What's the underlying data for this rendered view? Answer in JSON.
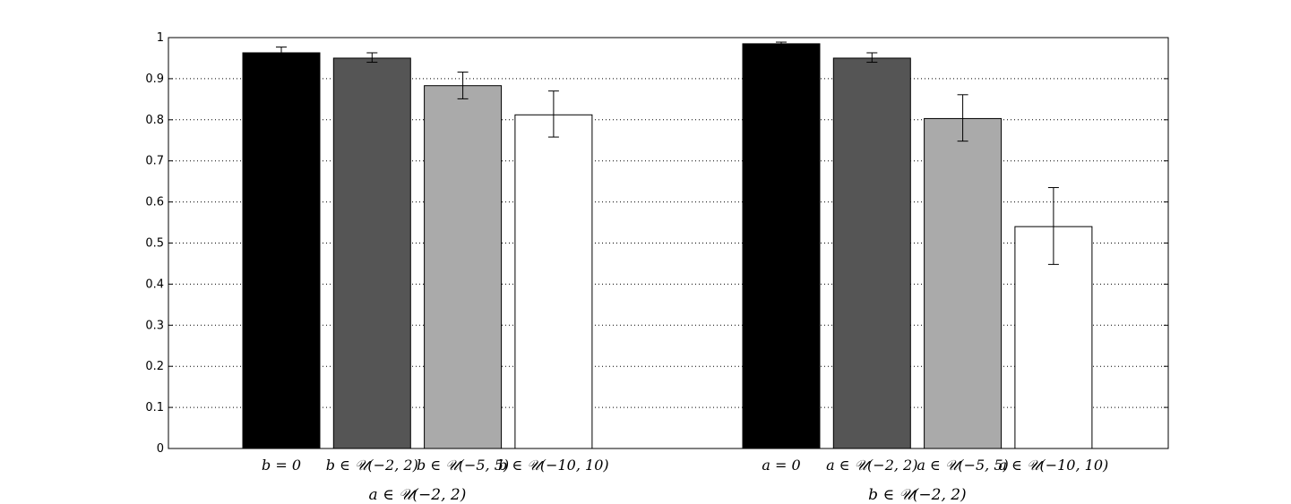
{
  "chart_data": {
    "type": "bar",
    "ylim": [
      0,
      1
    ],
    "yticks": [
      "0",
      "0.1",
      "0.2",
      "0.3",
      "0.4",
      "0.5",
      "0.6",
      "0.7",
      "0.8",
      "0.9",
      "1"
    ],
    "grid": "horizontal-dotted",
    "groups": [
      {
        "label": "a ∈ 𝒰(−2, 2)",
        "categories": [
          "b = 0",
          "b ∈ 𝒰(−2, 2)",
          "b ∈ 𝒰(−5, 5)",
          "b ∈ 𝒰(−10, 10)"
        ],
        "values": [
          0.963,
          0.95,
          0.883,
          0.812
        ],
        "error_low": [
          0.95,
          0.94,
          0.851,
          0.758
        ],
        "error_high": [
          0.977,
          0.963,
          0.916,
          0.87
        ]
      },
      {
        "label": "b ∈ 𝒰(−2, 2)",
        "categories": [
          "a = 0",
          "a ∈ 𝒰(−2, 2)",
          "a ∈ 𝒰(−5, 5)",
          "a ∈ 𝒰(−10, 10)"
        ],
        "values": [
          0.985,
          0.95,
          0.803,
          0.54
        ],
        "error_low": [
          0.981,
          0.94,
          0.748,
          0.448
        ],
        "error_high": [
          0.989,
          0.963,
          0.861,
          0.635
        ]
      }
    ],
    "bar_colors": [
      "#000000",
      "#555555",
      "#aaaaaa",
      "#ffffff"
    ]
  }
}
